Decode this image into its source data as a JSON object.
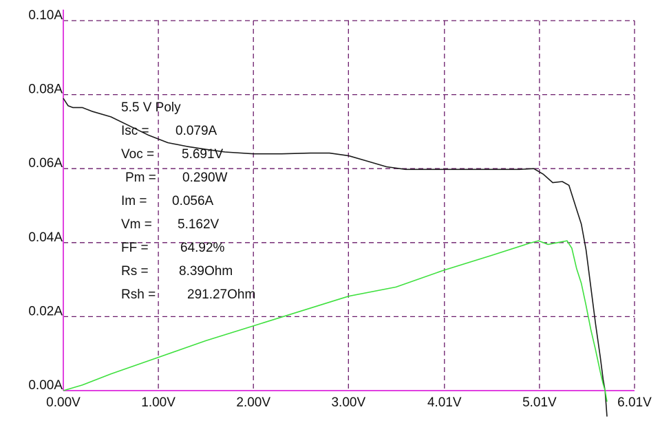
{
  "chart_data": {
    "type": "line",
    "title": "5.5 V Poly",
    "xlabel": "",
    "ylabel": "",
    "xlim": [
      0,
      6.01
    ],
    "ylim": [
      0,
      0.1
    ],
    "grid": true,
    "x_ticks": [
      {
        "value": 0.0,
        "label": "0.00V"
      },
      {
        "value": 1.0,
        "label": "1.00V"
      },
      {
        "value": 2.0,
        "label": "2.00V"
      },
      {
        "value": 3.0,
        "label": "3.00V"
      },
      {
        "value": 4.01,
        "label": "4.01V"
      },
      {
        "value": 5.01,
        "label": "5.01V"
      },
      {
        "value": 6.01,
        "label": "6.01V"
      }
    ],
    "y_ticks": [
      {
        "value": 0.0,
        "label": "0.00A"
      },
      {
        "value": 0.02,
        "label": "0.02A"
      },
      {
        "value": 0.04,
        "label": "0.04A"
      },
      {
        "value": 0.06,
        "label": "0.06A"
      },
      {
        "value": 0.08,
        "label": "0.08A"
      },
      {
        "value": 0.1,
        "label": "0.10A"
      }
    ],
    "series": [
      {
        "color": "#1a1a1a",
        "x": [
          0.0,
          0.05,
          0.1,
          0.2,
          0.3,
          0.5,
          0.7,
          0.9,
          1.1,
          1.3,
          1.5,
          1.7,
          2.0,
          2.3,
          2.6,
          2.8,
          3.0,
          3.2,
          3.4,
          3.6,
          4.0,
          4.4,
          4.8,
          4.95,
          5.05,
          5.15,
          5.25,
          5.32,
          5.4,
          5.45,
          5.5,
          5.55,
          5.6,
          5.65,
          5.68,
          5.7,
          5.72
        ],
        "y": [
          0.079,
          0.077,
          0.0765,
          0.0765,
          0.0755,
          0.074,
          0.0715,
          0.069,
          0.067,
          0.066,
          0.0652,
          0.0645,
          0.064,
          0.064,
          0.0642,
          0.0642,
          0.0635,
          0.062,
          0.0605,
          0.0598,
          0.0598,
          0.0598,
          0.0598,
          0.06,
          0.0585,
          0.0562,
          0.0565,
          0.0555,
          0.049,
          0.045,
          0.038,
          0.028,
          0.018,
          0.009,
          0.003,
          0.0,
          -0.007
        ]
      },
      {
        "color": "#3ee03e",
        "x": [
          0.0,
          0.2,
          0.5,
          1.0,
          1.5,
          2.0,
          2.5,
          3.0,
          3.5,
          4.0,
          4.5,
          4.9,
          5.0,
          5.1,
          5.2,
          5.3,
          5.35,
          5.4,
          5.45,
          5.5,
          5.55,
          5.6,
          5.65,
          5.68,
          5.7,
          5.72
        ],
        "y": [
          0.0,
          0.0015,
          0.0045,
          0.009,
          0.0135,
          0.0175,
          0.0215,
          0.0255,
          0.028,
          0.0325,
          0.0365,
          0.0398,
          0.0405,
          0.0395,
          0.04,
          0.0405,
          0.0385,
          0.033,
          0.029,
          0.023,
          0.0165,
          0.011,
          0.005,
          0.0018,
          0.0,
          -0.003
        ]
      }
    ],
    "annotations": {
      "title": "5.5 V Poly",
      "lines": [
        {
          "label": "Isc =",
          "value": "0.079A"
        },
        {
          "label": "Voc =",
          "value": "5.691V"
        },
        {
          "label": "Pm =",
          "value": "0.290W"
        },
        {
          "label": "Im =",
          "value": "0.056A"
        },
        {
          "label": "Vm =",
          "value": "5.162V"
        },
        {
          "label": "FF =",
          "value": "64.92%"
        },
        {
          "label": "Rs =",
          "value": "8.39Ohm"
        },
        {
          "label": "Rsh =",
          "value": "291.27Ohm"
        }
      ]
    },
    "colors": {
      "axis": "#e040e0",
      "grid": "#6a1a6a",
      "iv_curve": "#1a1a1a",
      "power_curve": "#3ee03e"
    }
  }
}
